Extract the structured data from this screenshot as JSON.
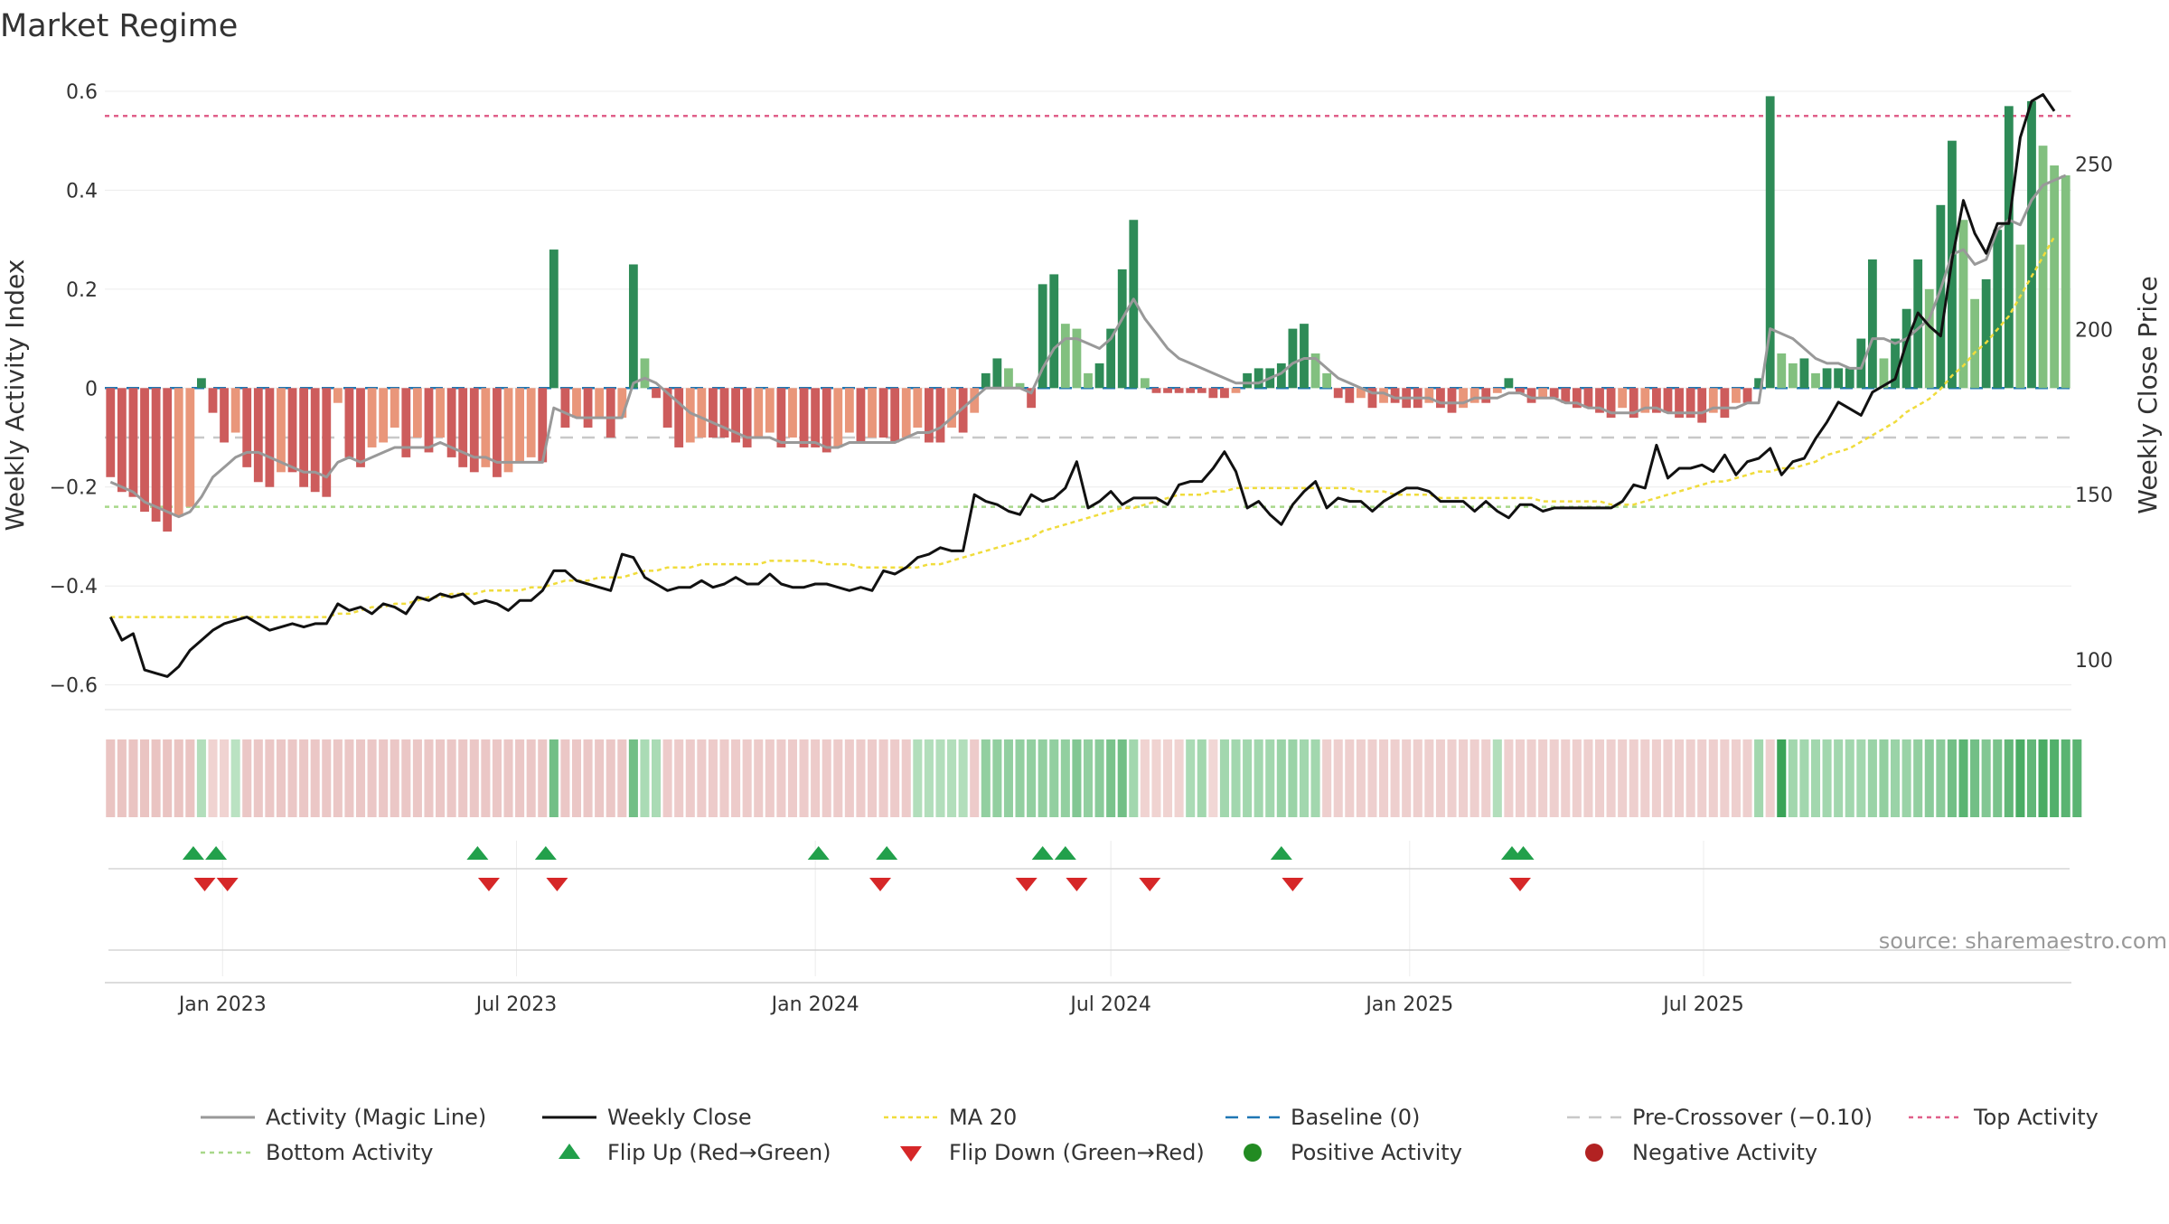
{
  "chart_data": {
    "type": "bar",
    "title": "Market Regime",
    "ylabel_left": "Weekly Activity Index",
    "ylabel_right": "Weekly Close Price",
    "source": "source: sharemaestro.com",
    "left_ylim": [
      -0.65,
      0.62
    ],
    "left_ticks": [
      -0.6,
      -0.4,
      -0.2,
      0,
      0.2,
      0.4,
      0.6
    ],
    "left_tick_labels": [
      "−0.6",
      "−0.4",
      "−0.2",
      "0",
      "0.2",
      "0.4",
      "0.6"
    ],
    "right_ylim": [
      85,
      275
    ],
    "right_ticks": [
      100,
      150,
      200,
      250
    ],
    "right_tick_labels": [
      "100",
      "150",
      "200",
      "250"
    ],
    "start_date": "2022-10-24",
    "week_step_days": 7,
    "x_ticks": [
      {
        "date": "2023-01-01",
        "label": "Jan 2023"
      },
      {
        "date": "2023-07-01",
        "label": "Jul 2023"
      },
      {
        "date": "2024-01-01",
        "label": "Jan 2024"
      },
      {
        "date": "2024-07-01",
        "label": "Jul 2024"
      },
      {
        "date": "2025-01-01",
        "label": "Jan 2025"
      },
      {
        "date": "2025-07-01",
        "label": "Jul 2025"
      }
    ],
    "reference_lines": {
      "baseline": 0,
      "pre_crossover": -0.1,
      "top_activity": 0.55,
      "bottom_activity": -0.24
    },
    "activity_index": [
      -0.18,
      -0.21,
      -0.22,
      -0.25,
      -0.27,
      -0.29,
      -0.26,
      -0.24,
      0.02,
      -0.05,
      -0.11,
      -0.09,
      -0.16,
      -0.19,
      -0.2,
      -0.17,
      -0.17,
      -0.2,
      -0.21,
      -0.22,
      -0.03,
      -0.14,
      -0.16,
      -0.12,
      -0.11,
      -0.08,
      -0.14,
      -0.1,
      -0.13,
      -0.1,
      -0.14,
      -0.16,
      -0.17,
      -0.16,
      -0.18,
      -0.17,
      -0.15,
      -0.14,
      -0.15,
      0.28,
      -0.08,
      -0.06,
      -0.08,
      -0.06,
      -0.1,
      -0.06,
      0.25,
      0.06,
      -0.02,
      -0.08,
      -0.12,
      -0.11,
      -0.1,
      -0.1,
      -0.1,
      -0.11,
      -0.12,
      -0.1,
      -0.09,
      -0.12,
      -0.1,
      -0.12,
      -0.12,
      -0.13,
      -0.12,
      -0.09,
      -0.11,
      -0.1,
      -0.1,
      -0.11,
      -0.1,
      -0.08,
      -0.11,
      -0.11,
      -0.08,
      -0.09,
      -0.05,
      0.03,
      0.06,
      0.04,
      0.01,
      -0.04,
      0.21,
      0.23,
      0.13,
      0.12,
      0.03,
      0.05,
      0.12,
      0.24,
      0.34,
      0.02,
      -0.01,
      -0.01,
      -0.01,
      -0.01,
      -0.01,
      -0.02,
      -0.02,
      -0.01,
      0.03,
      0.04,
      0.04,
      0.05,
      0.12,
      0.13,
      0.07,
      0.03,
      -0.02,
      -0.03,
      -0.02,
      -0.04,
      -0.03,
      -0.03,
      -0.04,
      -0.04,
      -0.03,
      -0.04,
      -0.05,
      -0.04,
      -0.03,
      -0.03,
      -0.01,
      0.02,
      -0.01,
      -0.03,
      -0.02,
      -0.02,
      -0.03,
      -0.04,
      -0.04,
      -0.05,
      -0.06,
      -0.04,
      -0.06,
      -0.05,
      -0.05,
      -0.05,
      -0.06,
      -0.06,
      -0.07,
      -0.05,
      -0.06,
      -0.03,
      -0.03,
      0.02,
      0.59,
      0.07,
      0.05,
      0.06,
      0.03,
      0.04,
      0.04,
      0.04,
      0.1,
      0.26,
      0.06,
      0.1,
      0.16,
      0.26,
      0.2,
      0.37,
      0.5,
      0.34,
      0.18,
      0.22,
      0.32,
      0.57,
      0.29,
      0.58,
      0.49,
      0.45,
      0.43
    ],
    "magic_line": [
      -0.19,
      -0.2,
      -0.21,
      -0.23,
      -0.24,
      -0.25,
      -0.26,
      -0.25,
      -0.22,
      -0.18,
      -0.16,
      -0.14,
      -0.13,
      -0.13,
      -0.14,
      -0.15,
      -0.16,
      -0.17,
      -0.17,
      -0.18,
      -0.15,
      -0.14,
      -0.15,
      -0.14,
      -0.13,
      -0.12,
      -0.12,
      -0.12,
      -0.12,
      -0.11,
      -0.12,
      -0.13,
      -0.14,
      -0.14,
      -0.15,
      -0.15,
      -0.15,
      -0.15,
      -0.15,
      -0.04,
      -0.05,
      -0.06,
      -0.06,
      -0.06,
      -0.06,
      -0.06,
      0.01,
      0.02,
      0.01,
      -0.01,
      -0.03,
      -0.05,
      -0.06,
      -0.07,
      -0.08,
      -0.09,
      -0.1,
      -0.1,
      -0.1,
      -0.11,
      -0.11,
      -0.11,
      -0.11,
      -0.12,
      -0.12,
      -0.11,
      -0.11,
      -0.11,
      -0.11,
      -0.11,
      -0.1,
      -0.09,
      -0.09,
      -0.08,
      -0.06,
      -0.04,
      -0.02,
      0.0,
      0.0,
      0.0,
      0.0,
      -0.01,
      0.04,
      0.08,
      0.1,
      0.1,
      0.09,
      0.08,
      0.1,
      0.14,
      0.18,
      0.14,
      0.11,
      0.08,
      0.06,
      0.05,
      0.04,
      0.03,
      0.02,
      0.01,
      0.01,
      0.01,
      0.02,
      0.03,
      0.05,
      0.06,
      0.06,
      0.04,
      0.02,
      0.01,
      0.0,
      -0.01,
      -0.01,
      -0.02,
      -0.02,
      -0.02,
      -0.02,
      -0.03,
      -0.03,
      -0.03,
      -0.02,
      -0.02,
      -0.02,
      -0.01,
      -0.01,
      -0.02,
      -0.02,
      -0.02,
      -0.03,
      -0.03,
      -0.04,
      -0.04,
      -0.05,
      -0.05,
      -0.05,
      -0.04,
      -0.04,
      -0.05,
      -0.05,
      -0.05,
      -0.05,
      -0.04,
      -0.04,
      -0.04,
      -0.03,
      -0.03,
      0.12,
      0.11,
      0.1,
      0.08,
      0.06,
      0.05,
      0.05,
      0.04,
      0.04,
      0.1,
      0.1,
      0.09,
      0.1,
      0.12,
      0.14,
      0.2,
      0.27,
      0.28,
      0.25,
      0.26,
      0.32,
      0.34,
      0.33,
      0.38,
      0.41,
      0.42,
      0.43
    ],
    "weekly_close": [
      113,
      106,
      108,
      97,
      96,
      95,
      98,
      103,
      106,
      109,
      111,
      112,
      113,
      111,
      109,
      110,
      111,
      110,
      111,
      111,
      117,
      115,
      116,
      114,
      117,
      116,
      114,
      119,
      118,
      120,
      119,
      120,
      117,
      118,
      117,
      115,
      118,
      118,
      121,
      127,
      127,
      124,
      123,
      122,
      121,
      132,
      131,
      125,
      123,
      121,
      122,
      122,
      124,
      122,
      123,
      125,
      123,
      123,
      126,
      123,
      122,
      122,
      123,
      123,
      122,
      121,
      122,
      121,
      127,
      126,
      128,
      131,
      132,
      134,
      133,
      133,
      150,
      148,
      147,
      145,
      144,
      150,
      148,
      149,
      152,
      160,
      146,
      148,
      151,
      147,
      149,
      149,
      149,
      147,
      153,
      154,
      154,
      158,
      163,
      157,
      146,
      148,
      144,
      141,
      147,
      151,
      154,
      146,
      149,
      148,
      148,
      145,
      148,
      150,
      152,
      152,
      151,
      148,
      148,
      148,
      145,
      148,
      145,
      143,
      147,
      147,
      145,
      146,
      146,
      146,
      146,
      146,
      146,
      148,
      153,
      152,
      165,
      155,
      158,
      158,
      159,
      157,
      162,
      156,
      160,
      161,
      164,
      156,
      160,
      161,
      167,
      172,
      178,
      176,
      174,
      181,
      183,
      185,
      196,
      205,
      201,
      198,
      221,
      239,
      229,
      223,
      232,
      232,
      258,
      269,
      271,
      266
    ],
    "ma20": [
      113,
      113,
      113,
      113,
      113,
      113,
      113,
      113,
      113,
      113,
      113,
      113,
      113,
      113,
      113,
      113,
      113,
      113,
      113,
      113,
      114,
      114,
      115,
      116,
      116,
      117,
      117,
      118,
      119,
      119,
      120,
      120,
      120,
      121,
      121,
      121,
      121,
      122,
      122,
      123,
      124,
      124,
      124,
      125,
      125,
      125,
      126,
      127,
      127,
      128,
      128,
      128,
      129,
      129,
      129,
      129,
      129,
      129,
      130,
      130,
      130,
      130,
      130,
      129,
      129,
      129,
      128,
      128,
      128,
      128,
      128,
      128,
      129,
      129,
      130,
      131,
      132,
      133,
      134,
      135,
      136,
      137,
      139,
      140,
      141,
      142,
      143,
      144,
      145,
      146,
      146,
      147,
      148,
      149,
      150,
      150,
      150,
      151,
      151,
      152,
      152,
      152,
      152,
      152,
      152,
      152,
      152,
      152,
      152,
      152,
      151,
      151,
      151,
      150,
      150,
      150,
      150,
      149,
      149,
      149,
      149,
      149,
      149,
      149,
      149,
      149,
      148,
      148,
      148,
      148,
      148,
      148,
      147,
      147,
      147,
      148,
      149,
      150,
      151,
      152,
      153,
      154,
      154,
      155,
      156,
      157,
      157,
      158,
      158,
      159,
      160,
      162,
      163,
      164,
      166,
      168,
      170,
      172,
      175,
      177,
      179,
      182,
      186,
      189,
      193,
      196,
      200,
      204,
      210,
      216,
      222,
      228
    ],
    "regime_strip": [
      -0.4,
      -0.4,
      -0.4,
      -0.4,
      -0.4,
      -0.4,
      -0.4,
      -0.4,
      0.2,
      -0.2,
      -0.2,
      0.15,
      -0.35,
      -0.35,
      -0.35,
      -0.35,
      -0.35,
      -0.35,
      -0.35,
      -0.35,
      -0.35,
      -0.35,
      -0.35,
      -0.35,
      -0.35,
      -0.35,
      -0.35,
      -0.35,
      -0.35,
      -0.35,
      -0.35,
      -0.35,
      -0.35,
      -0.35,
      -0.35,
      -0.35,
      -0.35,
      -0.35,
      -0.35,
      0.6,
      -0.35,
      -0.35,
      -0.35,
      -0.35,
      -0.35,
      -0.35,
      0.6,
      0.25,
      0.25,
      -0.3,
      -0.3,
      -0.3,
      -0.3,
      -0.3,
      -0.3,
      -0.3,
      -0.3,
      -0.3,
      -0.3,
      -0.3,
      -0.3,
      -0.3,
      -0.3,
      -0.3,
      -0.3,
      -0.3,
      -0.3,
      -0.3,
      -0.3,
      -0.3,
      -0.3,
      0.2,
      0.2,
      0.2,
      0.2,
      0.2,
      -0.3,
      0.4,
      0.4,
      0.4,
      0.4,
      0.4,
      0.4,
      0.4,
      0.4,
      0.5,
      0.4,
      0.45,
      0.55,
      0.6,
      0.3,
      -0.2,
      -0.2,
      -0.2,
      -0.2,
      0.25,
      0.3,
      -0.15,
      0.3,
      0.3,
      0.3,
      0.3,
      0.3,
      0.35,
      0.35,
      0.3,
      0.3,
      -0.25,
      -0.25,
      -0.25,
      -0.25,
      -0.25,
      -0.25,
      -0.25,
      -0.25,
      -0.25,
      -0.25,
      -0.25,
      -0.25,
      -0.25,
      -0.25,
      -0.25,
      0.2,
      -0.25,
      -0.25,
      -0.25,
      -0.25,
      -0.25,
      -0.25,
      -0.25,
      -0.25,
      -0.25,
      -0.25,
      -0.25,
      -0.25,
      -0.25,
      -0.25,
      -0.25,
      -0.25,
      -0.25,
      -0.25,
      -0.25,
      -0.25,
      -0.25,
      -0.25,
      0.3,
      -0.25,
      0.95,
      0.3,
      0.3,
      0.3,
      0.3,
      0.3,
      0.3,
      0.3,
      0.35,
      0.4,
      0.35,
      0.35,
      0.4,
      0.45,
      0.45,
      0.6,
      0.75,
      0.6,
      0.5,
      0.55,
      0.7,
      0.85,
      0.7,
      0.85,
      0.8,
      0.75,
      0.75
    ],
    "flip_up_dates": [
      "2022-12-14",
      "2022-12-28",
      "2023-06-07",
      "2023-07-19",
      "2024-01-03",
      "2024-02-14",
      "2024-05-20",
      "2024-06-03",
      "2024-10-14",
      "2025-03-05",
      "2025-03-12"
    ],
    "flip_down_dates": [
      "2022-12-21",
      "2023-01-04",
      "2023-06-14",
      "2023-07-26",
      "2024-02-10",
      "2024-05-10",
      "2024-06-10",
      "2024-07-25",
      "2024-10-21",
      "2025-03-10"
    ],
    "legend": [
      {
        "key": "magic",
        "label": "Activity (Magic Line)"
      },
      {
        "key": "close",
        "label": "Weekly Close"
      },
      {
        "key": "ma",
        "label": "MA 20"
      },
      {
        "key": "baseline",
        "label": "Baseline (0)"
      },
      {
        "key": "precross",
        "label": "Pre-Crossover (−0.10)"
      },
      {
        "key": "top",
        "label": "Top Activity"
      },
      {
        "key": "bottom",
        "label": "Bottom Activity"
      },
      {
        "key": "flipup",
        "label": "Flip Up (Red→Green)"
      },
      {
        "key": "flipdown",
        "label": "Flip Down (Green→Red)"
      },
      {
        "key": "pos",
        "label": "Positive Activity"
      },
      {
        "key": "neg",
        "label": "Negative Activity"
      }
    ],
    "colors": {
      "pos_strong": "#2e8b57",
      "pos_weak": "#82c07f",
      "neg_strong": "#cd5c5c",
      "neg_weak": "#e9967a",
      "magic_line": "#999999",
      "close_line": "#111111",
      "ma_line": "#f0dc3c",
      "baseline": "#1f77b4",
      "pre_crossover": "#c8c8c8",
      "top_activity": "#e0608a",
      "bottom_activity": "#a8d88a",
      "flip_up": "#22a04b",
      "flip_down": "#d62728",
      "positive_dot": "#228b22",
      "negative_dot": "#b22222"
    }
  }
}
